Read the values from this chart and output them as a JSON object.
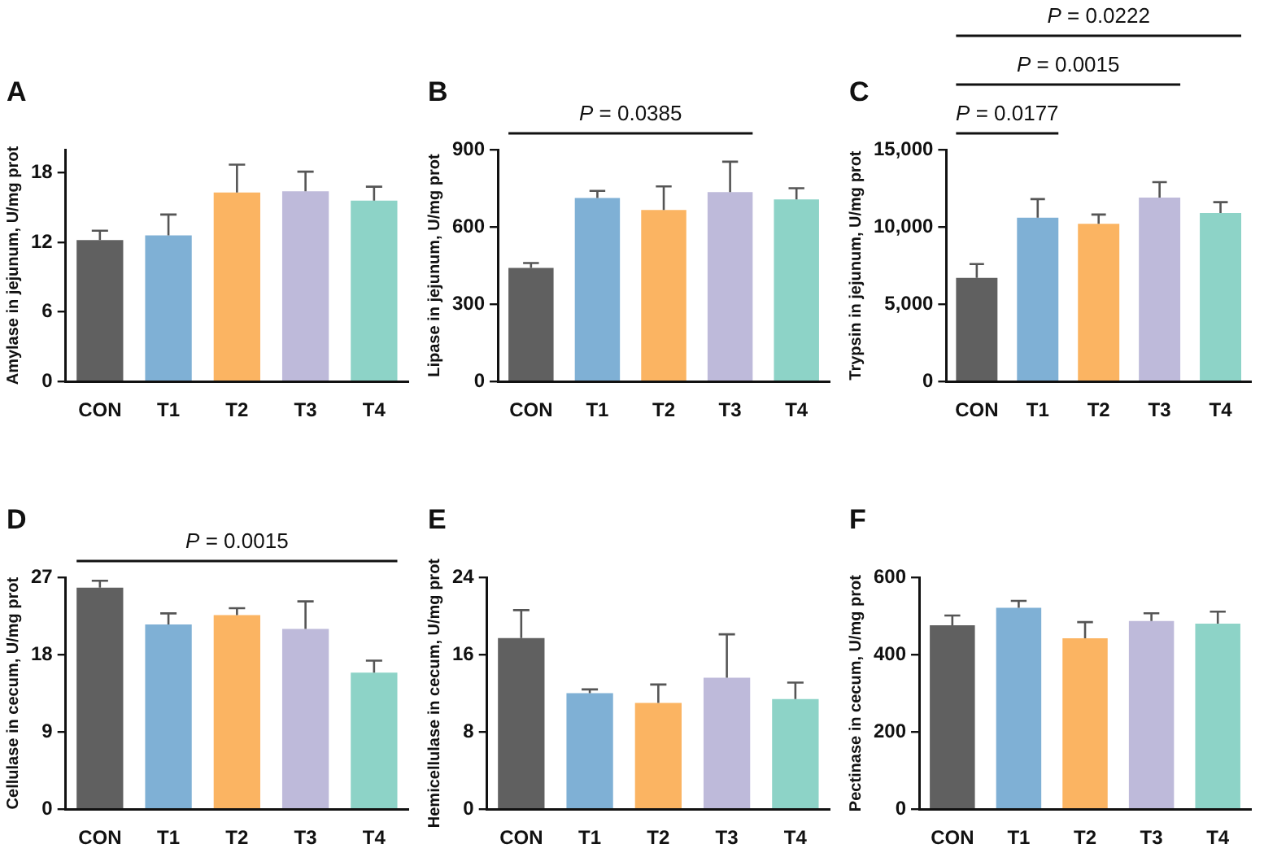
{
  "chart_data": [
    {
      "type": "bar",
      "title": "A",
      "ylabel": "Amylase in jejunum, U/mg prot",
      "categories": [
        "CON",
        "T1",
        "T2",
        "T3",
        "T4"
      ],
      "values": [
        12.2,
        12.6,
        16.3,
        16.4,
        15.6
      ],
      "errors": [
        [
          12.2,
          13.0
        ],
        [
          12.6,
          14.4
        ],
        [
          16.3,
          18.7
        ],
        [
          16.4,
          18.1
        ],
        [
          15.6,
          16.8
        ]
      ],
      "colors": [
        "#606060",
        "#7fb0d5",
        "#fbb462",
        "#bebada",
        "#8dd3c7"
      ],
      "ylim": [
        0,
        20
      ],
      "yticks": [
        0,
        6,
        12,
        18
      ],
      "grid": false
    },
    {
      "type": "bar",
      "title": "B",
      "ylabel": "Lipase in jejunum, U/mg prot",
      "categories": [
        "CON",
        "T1",
        "T2",
        "T3",
        "T4"
      ],
      "values": [
        441,
        712,
        666,
        735,
        707
      ],
      "errors": [
        [
          441,
          460
        ],
        [
          712,
          740
        ],
        [
          666,
          757
        ],
        [
          735,
          853
        ],
        [
          707,
          750
        ]
      ],
      "colors": [
        "#606060",
        "#7fb0d5",
        "#fbb462",
        "#bebada",
        "#8dd3c7"
      ],
      "ylim": [
        0,
        900
      ],
      "yticks": [
        0,
        300,
        600,
        900
      ],
      "grid": false,
      "annotations": [
        "P = 0.0385"
      ]
    },
    {
      "type": "bar",
      "title": "C",
      "ylabel": "Trypsin in jejunum, U/mg prot",
      "categories": [
        "CON",
        "T1",
        "T2",
        "T3",
        "T4"
      ],
      "values": [
        6700,
        10600,
        10200,
        11900,
        10900
      ],
      "errors": [
        [
          6700,
          7600
        ],
        [
          10600,
          11800
        ],
        [
          10200,
          10800
        ],
        [
          11900,
          12900
        ],
        [
          10900,
          11600
        ]
      ],
      "colors": [
        "#606060",
        "#7fb0d5",
        "#fbb462",
        "#bebada",
        "#8dd3c7"
      ],
      "ylim": [
        0,
        15000
      ],
      "yticks": [
        {
          "value": 0,
          "label": "0"
        },
        {
          "value": 5000,
          "label": "5,000"
        },
        {
          "value": 10000,
          "label": "10,000"
        },
        {
          "value": 15000,
          "label": "15,000"
        }
      ],
      "grid": false,
      "annotations": [
        "P = 0.0177",
        "P = 0.0015",
        "P = 0.0222"
      ]
    },
    {
      "type": "bar",
      "title": "D",
      "ylabel": "Cellulase in cecum, U/mg prot",
      "categories": [
        "CON",
        "T1",
        "T2",
        "T3",
        "T4"
      ],
      "values": [
        25.8,
        21.5,
        22.6,
        21.0,
        15.9
      ],
      "errors": [
        [
          25.8,
          26.6
        ],
        [
          21.5,
          22.8
        ],
        [
          22.6,
          23.4
        ],
        [
          21.0,
          24.2
        ],
        [
          15.9,
          17.3
        ]
      ],
      "colors": [
        "#606060",
        "#7fb0d5",
        "#fbb462",
        "#bebada",
        "#8dd3c7"
      ],
      "ylim": [
        0,
        27
      ],
      "yticks": [
        0,
        9,
        18,
        27
      ],
      "grid": false,
      "annotations": [
        "P = 0.0015"
      ]
    },
    {
      "type": "bar",
      "title": "E",
      "ylabel": "Hemicellulase in cecum, U/mg prot",
      "categories": [
        "CON",
        "T1",
        "T2",
        "T3",
        "T4"
      ],
      "values": [
        17.7,
        12.0,
        11.0,
        13.6,
        11.4
      ],
      "errors": [
        [
          17.7,
          20.6
        ],
        [
          12.0,
          12.4
        ],
        [
          11.0,
          12.9
        ],
        [
          13.6,
          18.1
        ],
        [
          11.4,
          13.1
        ]
      ],
      "colors": [
        "#606060",
        "#7fb0d5",
        "#fbb462",
        "#bebada",
        "#8dd3c7"
      ],
      "ylim": [
        0,
        24
      ],
      "yticks": [
        0,
        8,
        16,
        24
      ],
      "grid": false
    },
    {
      "type": "bar",
      "title": "F",
      "ylabel": "Pectinase in cecum, U/mg prot",
      "categories": [
        "CON",
        "T1",
        "T2",
        "T3",
        "T4"
      ],
      "values": [
        476,
        521,
        442,
        487,
        480
      ],
      "errors": [
        [
          476,
          501
        ],
        [
          521,
          539
        ],
        [
          442,
          484
        ],
        [
          487,
          507
        ],
        [
          480,
          511
        ]
      ],
      "colors": [
        "#606060",
        "#7fb0d5",
        "#fbb462",
        "#bebada",
        "#8dd3c7"
      ],
      "ylim": [
        0,
        600
      ],
      "yticks": [
        0,
        200,
        400,
        600
      ],
      "grid": false
    }
  ]
}
